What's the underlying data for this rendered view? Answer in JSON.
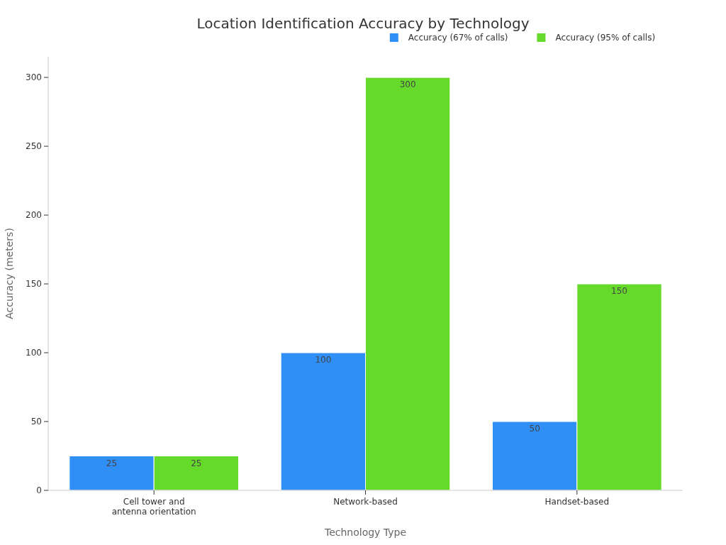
{
  "chart_data": {
    "type": "bar",
    "title": "Location Identification Accuracy by Technology",
    "xlabel": "Technology Type",
    "ylabel": "Accuracy (meters)",
    "categories": [
      "Cell tower and antenna orientation",
      "Network-based",
      "Handset-based"
    ],
    "series": [
      {
        "name": "Accuracy (67% of calls)",
        "color": "#2f8ff7",
        "values": [
          25,
          100,
          50
        ]
      },
      {
        "name": "Accuracy (95% of calls)",
        "color": "#66da2a",
        "values": [
          25,
          300,
          150
        ]
      }
    ],
    "ylim": [
      0,
      315
    ],
    "yticks": [
      0,
      50,
      100,
      150,
      200,
      250,
      300
    ],
    "data_labels": true,
    "legend": "top right",
    "grid": false
  }
}
